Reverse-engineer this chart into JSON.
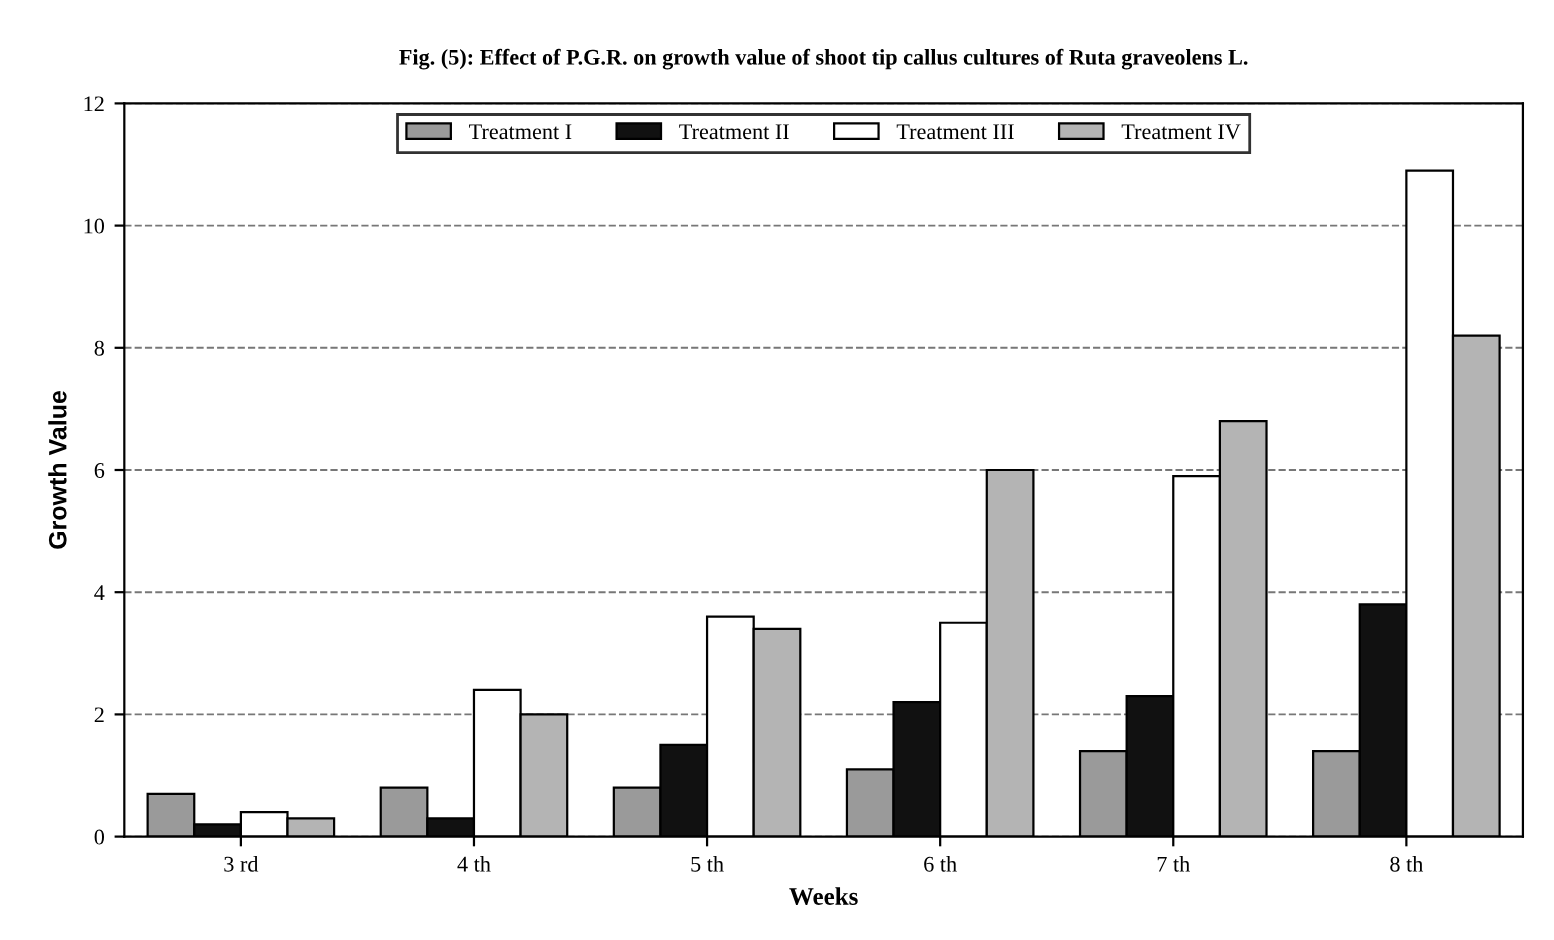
{
  "chart_data": {
    "type": "bar",
    "title": "Fig. (5): Effect of P.G.R. on growth value of shoot tip callus cultures of Ruta graveolens L.",
    "xlabel": "Weeks",
    "ylabel": "Growth Value",
    "categories": [
      "3 rd",
      "4 th",
      "5 th",
      "6 th",
      "7 th",
      "8 th"
    ],
    "series": [
      {
        "name": "Treatment I",
        "color": "#9a9a9a",
        "values": [
          0.7,
          0.8,
          0.8,
          1.1,
          1.4,
          1.4
        ]
      },
      {
        "name": "Treatment II",
        "color": "#111111",
        "values": [
          0.2,
          0.3,
          1.5,
          2.2,
          2.3,
          3.8
        ]
      },
      {
        "name": "Treatment III",
        "color": "#ffffff",
        "values": [
          0.4,
          2.4,
          3.6,
          3.5,
          5.9,
          10.9
        ]
      },
      {
        "name": "Treatment IV",
        "color": "#b4b4b4",
        "values": [
          0.3,
          2.0,
          3.4,
          6.0,
          6.8,
          8.2
        ]
      }
    ],
    "ylim": [
      0,
      12
    ],
    "yticks": [
      0,
      2,
      4,
      6,
      8,
      10,
      12
    ],
    "grid": "y",
    "legend": "top"
  }
}
